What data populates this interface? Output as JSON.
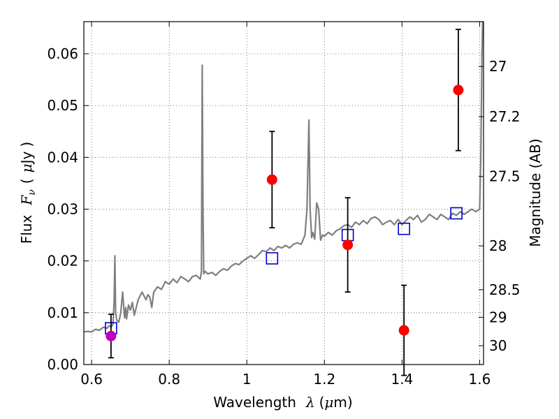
{
  "chart_data": {
    "type": "scatter",
    "xlabel": "Wavelength",
    "xlabel_symbol": "λ",
    "xlabel_unit_open": "(",
    "xlabel_unit_mu": "μ",
    "xlabel_unit_rest": "m)",
    "ylabel": "Flux",
    "ylabel_symbol": "F",
    "ylabel_subscript": "ν",
    "ylabel_unit_open": "(",
    "ylabel_unit_mu": "μ",
    "ylabel_unit_rest": "Jy",
    "ylabel_unit_close": ")",
    "y2label": "Magnitude (AB)",
    "xlim": [
      0.58,
      1.61
    ],
    "ylim": [
      0.0,
      0.0662
    ],
    "x_ticks": [
      0.6,
      0.8,
      1.0,
      1.2,
      1.4,
      1.6
    ],
    "x_tick_labels": [
      "0.6",
      "0.8",
      "1",
      "1.2",
      "1.4",
      "1.6"
    ],
    "y_ticks": [
      0.0,
      0.01,
      0.02,
      0.03,
      0.04,
      0.05,
      0.06
    ],
    "y_tick_labels": [
      "0.00",
      "0.01",
      "0.02",
      "0.03",
      "0.04",
      "0.05",
      "0.06"
    ],
    "y2_ticks": [
      {
        "mag": 27,
        "label": "27"
      },
      {
        "mag": 27.2,
        "label": "27.2"
      },
      {
        "mag": 27.5,
        "label": "27.5"
      },
      {
        "mag": 28,
        "label": "28"
      },
      {
        "mag": 28.5,
        "label": "28.5"
      },
      {
        "mag": 29,
        "label": "29"
      },
      {
        "mag": 30,
        "label": "30"
      }
    ],
    "grid": true,
    "series": [
      {
        "kind": "line",
        "color": "#7f7f7f",
        "x": [
          0.58,
          0.59,
          0.6,
          0.61,
          0.62,
          0.63,
          0.64,
          0.645,
          0.65,
          0.655,
          0.658,
          0.66,
          0.662,
          0.665,
          0.67,
          0.675,
          0.68,
          0.685,
          0.688,
          0.69,
          0.695,
          0.7,
          0.705,
          0.71,
          0.715,
          0.72,
          0.73,
          0.74,
          0.745,
          0.75,
          0.755,
          0.76,
          0.77,
          0.78,
          0.79,
          0.8,
          0.81,
          0.82,
          0.83,
          0.84,
          0.85,
          0.86,
          0.87,
          0.88,
          0.883,
          0.885,
          0.887,
          0.889,
          0.892,
          0.9,
          0.91,
          0.92,
          0.93,
          0.94,
          0.95,
          0.96,
          0.97,
          0.98,
          0.99,
          1.0,
          1.01,
          1.02,
          1.03,
          1.04,
          1.05,
          1.06,
          1.07,
          1.08,
          1.09,
          1.1,
          1.11,
          1.12,
          1.13,
          1.14,
          1.15,
          1.155,
          1.16,
          1.163,
          1.167,
          1.17,
          1.175,
          1.18,
          1.185,
          1.19,
          1.195,
          1.2,
          1.21,
          1.22,
          1.23,
          1.24,
          1.25,
          1.26,
          1.27,
          1.28,
          1.29,
          1.3,
          1.31,
          1.32,
          1.33,
          1.34,
          1.35,
          1.36,
          1.37,
          1.38,
          1.39,
          1.4,
          1.41,
          1.42,
          1.43,
          1.44,
          1.45,
          1.46,
          1.47,
          1.48,
          1.49,
          1.5,
          1.51,
          1.52,
          1.53,
          1.54,
          1.55,
          1.56,
          1.57,
          1.58,
          1.59,
          1.6,
          1.603,
          1.606,
          1.608,
          1.61
        ],
        "y": [
          0.0063,
          0.0064,
          0.0063,
          0.0068,
          0.0066,
          0.0072,
          0.007,
          0.0075,
          0.0072,
          0.0078,
          0.012,
          0.021,
          0.01,
          0.0085,
          0.0082,
          0.01,
          0.014,
          0.009,
          0.011,
          0.0088,
          0.0115,
          0.0105,
          0.012,
          0.0095,
          0.011,
          0.0125,
          0.014,
          0.0125,
          0.0135,
          0.013,
          0.011,
          0.014,
          0.015,
          0.0145,
          0.016,
          0.0155,
          0.0165,
          0.0158,
          0.017,
          0.0165,
          0.016,
          0.017,
          0.0172,
          0.0165,
          0.018,
          0.0578,
          0.03,
          0.0175,
          0.018,
          0.0175,
          0.0178,
          0.0172,
          0.018,
          0.0185,
          0.0182,
          0.019,
          0.0195,
          0.0193,
          0.02,
          0.0205,
          0.021,
          0.0205,
          0.0212,
          0.022,
          0.0218,
          0.0225,
          0.022,
          0.0228,
          0.0225,
          0.023,
          0.0225,
          0.0232,
          0.0235,
          0.0232,
          0.025,
          0.03,
          0.0472,
          0.03,
          0.0245,
          0.0255,
          0.0242,
          0.0312,
          0.03,
          0.024,
          0.025,
          0.0248,
          0.0255,
          0.025,
          0.0258,
          0.0262,
          0.0268,
          0.027,
          0.0265,
          0.0275,
          0.027,
          0.0278,
          0.0272,
          0.0282,
          0.0285,
          0.028,
          0.027,
          0.0275,
          0.0278,
          0.027,
          0.028,
          0.027,
          0.0278,
          0.0285,
          0.028,
          0.0288,
          0.0275,
          0.028,
          0.029,
          0.0285,
          0.028,
          0.029,
          0.0285,
          0.028,
          0.0292,
          0.0288,
          0.0295,
          0.029,
          0.0295,
          0.03,
          0.0295,
          0.03,
          0.04,
          0.06,
          0.067,
          0.067
        ]
      },
      {
        "kind": "squares",
        "color": "#0000cc",
        "x": [
          0.65,
          1.065,
          1.26,
          1.405,
          1.54
        ],
        "y": [
          0.007,
          0.0205,
          0.025,
          0.0262,
          0.0292
        ]
      },
      {
        "kind": "points",
        "color": "#ff0000",
        "x": [
          1.065,
          1.26,
          1.405,
          1.545
        ],
        "y": [
          0.0357,
          0.0231,
          0.0066,
          0.053
        ],
        "yerr": [
          0.0093,
          0.0091,
          0.0087,
          0.0117
        ]
      },
      {
        "kind": "points",
        "color": "#bf00bf",
        "x": [
          0.65
        ],
        "y": [
          0.0055
        ],
        "yerr": [
          0.0042
        ]
      }
    ]
  }
}
